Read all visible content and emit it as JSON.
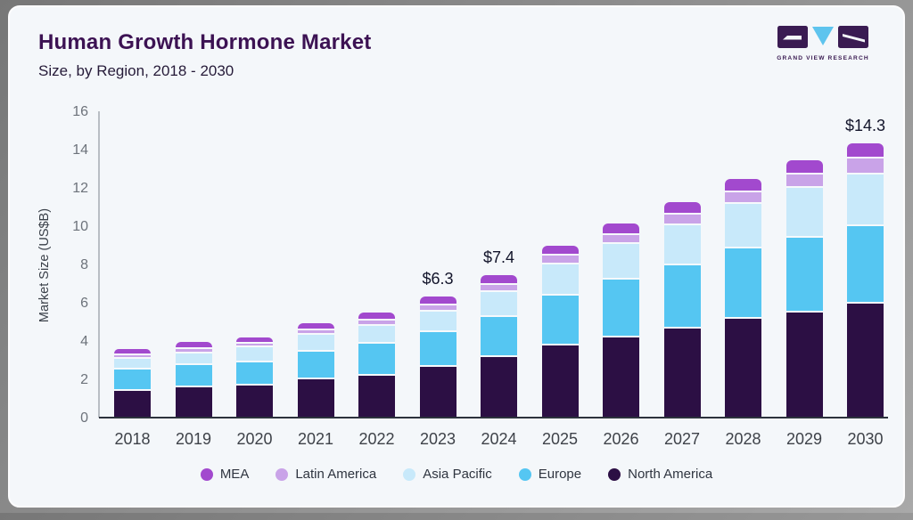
{
  "header": {
    "title": "Human Growth Hormone Market",
    "subtitle": "Size, by Region, 2018 - 2030"
  },
  "logo": {
    "text": "GRAND VIEW RESEARCH",
    "brand_dark": "#3a1b52",
    "brand_blue": "#5ec4ee"
  },
  "chart_data": {
    "type": "bar",
    "stacked": true,
    "title": "Human Growth Hormone Market",
    "subtitle": "Size, by Region, 2018 - 2030",
    "xlabel": "",
    "ylabel": "Market Size (US$B)",
    "ylim": [
      0,
      16
    ],
    "yticks": [
      0,
      2,
      4,
      6,
      8,
      10,
      12,
      14,
      16
    ],
    "grid": false,
    "legend_position": "bottom",
    "categories": [
      "2018",
      "2019",
      "2020",
      "2021",
      "2022",
      "2023",
      "2024",
      "2025",
      "2026",
      "2027",
      "2028",
      "2029",
      "2030"
    ],
    "series": [
      {
        "name": "North America",
        "color": "#2c0f44",
        "values": [
          1.45,
          1.65,
          1.7,
          2.05,
          2.25,
          2.7,
          3.2,
          3.8,
          4.25,
          4.7,
          5.2,
          5.55,
          6.0
        ]
      },
      {
        "name": "Europe",
        "color": "#55c6f2",
        "values": [
          1.1,
          1.15,
          1.25,
          1.45,
          1.65,
          1.8,
          2.1,
          2.6,
          3.0,
          3.3,
          3.7,
          3.9,
          4.05
        ]
      },
      {
        "name": "Asia Pacific",
        "color": "#c8e9fa",
        "values": [
          0.55,
          0.6,
          0.75,
          0.85,
          0.95,
          1.1,
          1.3,
          1.65,
          1.85,
          2.1,
          2.3,
          2.6,
          2.7
        ]
      },
      {
        "name": "Latin America",
        "color": "#c9a3e8",
        "values": [
          0.22,
          0.25,
          0.22,
          0.25,
          0.27,
          0.32,
          0.4,
          0.45,
          0.5,
          0.55,
          0.6,
          0.7,
          0.82
        ]
      },
      {
        "name": "MEA",
        "color": "#a249ce",
        "values": [
          0.23,
          0.25,
          0.23,
          0.28,
          0.3,
          0.38,
          0.4,
          0.45,
          0.5,
          0.58,
          0.6,
          0.65,
          0.73
        ]
      }
    ],
    "bar_labels": {
      "2023": "$6.3",
      "2024": "$7.4",
      "2030": "$14.3"
    },
    "totals_labeled": {
      "2023": 6.3,
      "2024": 7.4,
      "2030": 14.3
    }
  }
}
